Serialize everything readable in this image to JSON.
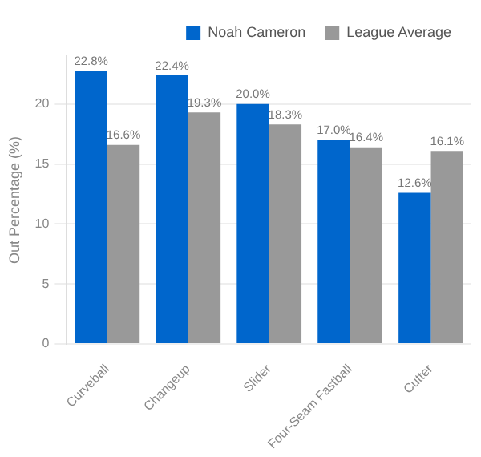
{
  "chart_data": {
    "type": "bar",
    "ylabel": "Out Percentage (%)",
    "categories": [
      "Curveball",
      "Changeup",
      "Slider",
      "Four-Seam Fastball",
      "Cutter"
    ],
    "series": [
      {
        "name": "Noah Cameron",
        "color": "#0066cc",
        "values": [
          22.8,
          22.4,
          20.0,
          17.0,
          12.6
        ],
        "value_labels": [
          "22.8%",
          "22.4%",
          "20.0%",
          "17.0%",
          "12.6%"
        ]
      },
      {
        "name": "League Average",
        "color": "#999999",
        "values": [
          16.6,
          19.3,
          18.3,
          16.4,
          16.1
        ],
        "value_labels": [
          "16.6%",
          "19.3%",
          "18.3%",
          "16.4%",
          "16.1%"
        ]
      }
    ],
    "yticks": [
      0,
      5,
      10,
      15,
      20
    ],
    "ylim": [
      0,
      24
    ],
    "grid": "y",
    "legend": "top right"
  }
}
